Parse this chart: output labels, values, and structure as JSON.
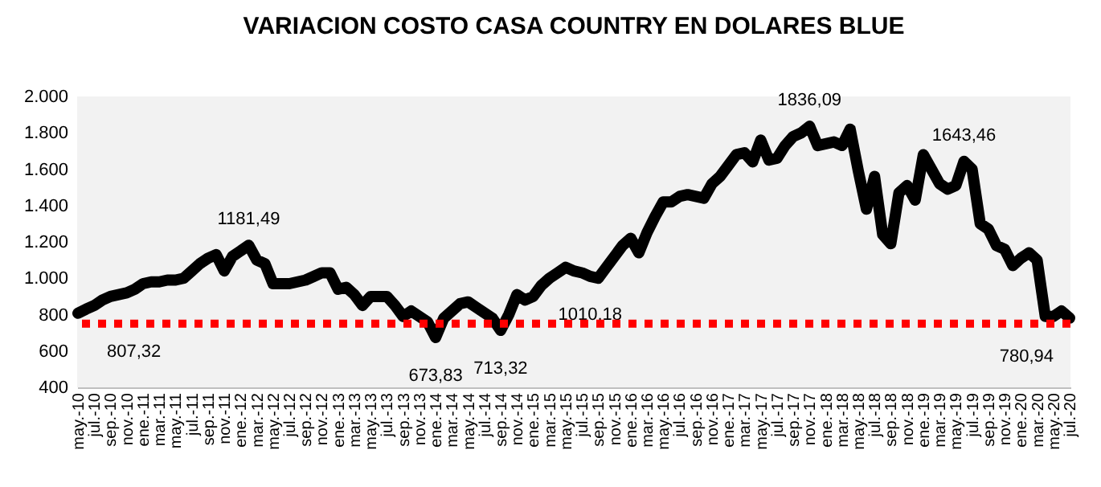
{
  "chart_data": {
    "type": "line",
    "title": "VARIACION COSTO CASA COUNTRY EN DOLARES BLUE",
    "categories": [
      "may.-10",
      null,
      "jul.-10",
      null,
      "sep.-10",
      null,
      "nov.-10",
      null,
      "ene.-11",
      null,
      "mar.-11",
      null,
      "may.-11",
      null,
      "jul.-11",
      null,
      "sep.-11",
      null,
      "nov.-11",
      null,
      "ene.-12",
      null,
      "mar.-12",
      null,
      "may.-12",
      null,
      "jul.-12",
      null,
      "sep.-12",
      null,
      "nov.-12",
      null,
      "ene.-13",
      null,
      "mar.-13",
      null,
      "may.-13",
      null,
      "jul.-13",
      null,
      "sep.-13",
      null,
      "nov.-13",
      null,
      "ene.-14",
      null,
      "mar.-14",
      null,
      "may.-14",
      null,
      "jul.-14",
      null,
      "sep.-14",
      null,
      "nov.-14",
      null,
      "ene.-15",
      null,
      "mar.-15",
      null,
      "may.-15",
      null,
      "jul.-15",
      null,
      "sep.-15",
      null,
      "nov.-15",
      null,
      "ene.-16",
      null,
      "mar.-16",
      null,
      "may.-16",
      null,
      "jul.-16",
      null,
      "sep.-16",
      null,
      "nov.-16",
      null,
      "ene.-17",
      null,
      "mar.-17",
      null,
      "may.-17",
      null,
      "jul.-17",
      null,
      "sep.-17",
      null,
      "nov.-17",
      null,
      "ene.-18",
      null,
      "mar.-18",
      null,
      "may.-18",
      null,
      "jul.-18",
      null,
      "sep.-18",
      null,
      "nov.-18",
      null,
      "ene.-19",
      null,
      "mar.-19",
      null,
      "may.-19",
      null,
      "jul.-19",
      null,
      "sep.-19",
      null,
      "nov.-19",
      null,
      "ene.-20",
      null,
      "mar.-20",
      null,
      "may.-20",
      null,
      "jul.-20"
    ],
    "series": [
      {
        "color": "#000000",
        "values": [
          807.32,
          830,
          850,
          880,
          900,
          910,
          920,
          940,
          970,
          980,
          980,
          990,
          990,
          1000,
          1040,
          1080,
          1110,
          1130,
          1040,
          1120,
          1150,
          1181.49,
          1100,
          1080,
          970,
          970,
          970,
          980,
          990,
          1010,
          1030,
          1030,
          940,
          950,
          910,
          850,
          900,
          900,
          900,
          850,
          790,
          820,
          790,
          760,
          673.83,
          780,
          820,
          860,
          870,
          840,
          810,
          780,
          713.32,
          800,
          910,
          880,
          900,
          960,
          1000,
          1030,
          1060,
          1040,
          1030,
          1010.18,
          1000,
          1060,
          1120,
          1180,
          1220,
          1140,
          1250,
          1340,
          1420,
          1420,
          1450,
          1460,
          1450,
          1440,
          1520,
          1560,
          1620,
          1680,
          1690,
          1640,
          1760,
          1650,
          1660,
          1730,
          1780,
          1800,
          1836.09,
          1730,
          1740,
          1750,
          1730,
          1820,
          1590,
          1380,
          1560,
          1240,
          1190,
          1470,
          1510,
          1430,
          1680,
          1600,
          1520,
          1490,
          1510,
          1643.46,
          1600,
          1300,
          1270,
          1180,
          1160,
          1070,
          1110,
          1140,
          1100,
          790,
          790,
          820,
          780.94
        ],
        "value_labels": [
          "807,32",
          null,
          null,
          null,
          null,
          null,
          null,
          null,
          null,
          null,
          null,
          null,
          null,
          null,
          null,
          null,
          null,
          null,
          null,
          null,
          null,
          "1181,49",
          null,
          null,
          null,
          null,
          null,
          null,
          null,
          null,
          null,
          null,
          null,
          null,
          null,
          null,
          null,
          null,
          null,
          null,
          null,
          null,
          null,
          null,
          "673,83",
          null,
          null,
          null,
          null,
          null,
          null,
          null,
          "713,32",
          null,
          null,
          null,
          null,
          null,
          null,
          null,
          null,
          null,
          null,
          "1010,18",
          null,
          null,
          null,
          null,
          null,
          null,
          null,
          null,
          null,
          null,
          null,
          null,
          null,
          null,
          null,
          null,
          null,
          null,
          null,
          null,
          null,
          null,
          null,
          null,
          null,
          null,
          "1836,09",
          null,
          null,
          null,
          null,
          null,
          null,
          null,
          null,
          null,
          null,
          null,
          null,
          null,
          null,
          null,
          null,
          null,
          null,
          "1643,46",
          null,
          null,
          null,
          null,
          null,
          null,
          null,
          null,
          null,
          null,
          null,
          null,
          "780,94"
        ]
      }
    ],
    "ylim": [
      400,
      2000
    ],
    "yticks": [
      {
        "value": 400,
        "label": "400"
      },
      {
        "value": 600,
        "label": "600"
      },
      {
        "value": 800,
        "label": "800"
      },
      {
        "value": 1000,
        "label": "1.000"
      },
      {
        "value": 1200,
        "label": "1.200"
      },
      {
        "value": 1400,
        "label": "1.400"
      },
      {
        "value": 1600,
        "label": "1.600"
      },
      {
        "value": 1800,
        "label": "1.800"
      },
      {
        "value": 2000,
        "label": "2.000"
      }
    ],
    "ref_lines": [
      {
        "axis": "y",
        "value": 750,
        "color": "#ff0000",
        "line_style": "dotted"
      }
    ],
    "grid": false
  }
}
